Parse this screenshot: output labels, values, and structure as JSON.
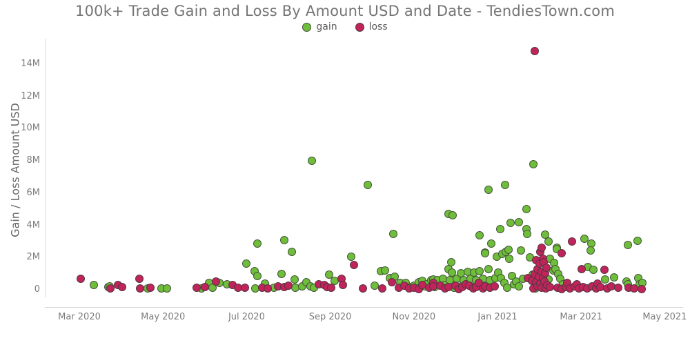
{
  "header": {
    "title": "100k+ Trade Gain and Loss By Amount USD and Date - TendiesTown.com"
  },
  "colors": {
    "gain": "#6fbe3b",
    "loss": "#c0245b",
    "title_text": "#757575",
    "axis_text": "#7c7c7c",
    "axis_line": "#d9d9d9"
  },
  "chart_data": {
    "type": "scatter",
    "title": "100k+ Trade Gain and Loss By Amount USD and Date - TendiesTown.com",
    "xlabel": "",
    "ylabel": "Gain / Loss Amount USD",
    "x_unit": "months_since_2020-01-01",
    "y_unit": "USD_millions",
    "xlim": [
      1.17,
      16.45
    ],
    "ylim": [
      0,
      15.6
    ],
    "grid": false,
    "legend_position": "top-center",
    "x_ticks": [
      {
        "m": 2,
        "label": "Mar 2020"
      },
      {
        "m": 4,
        "label": "May 2020"
      },
      {
        "m": 6,
        "label": "Jul 2020"
      },
      {
        "m": 8,
        "label": "Sep 2020"
      },
      {
        "m": 10,
        "label": "Nov 2020"
      },
      {
        "m": 12,
        "label": "Jan 2021"
      },
      {
        "m": 14,
        "label": "Mar 2021"
      },
      {
        "m": 16,
        "label": "May 2021"
      }
    ],
    "y_ticks": [
      {
        "v": 0,
        "label": "0"
      },
      {
        "v": 2,
        "label": "2M"
      },
      {
        "v": 4,
        "label": "4M"
      },
      {
        "v": 6,
        "label": "6M"
      },
      {
        "v": 8,
        "label": "8M"
      },
      {
        "v": 10,
        "label": "10M"
      },
      {
        "v": 12,
        "label": "12M"
      },
      {
        "v": 14,
        "label": "14M"
      }
    ],
    "series": [
      {
        "name": "gain",
        "color": "#6fbe3b",
        "points": [
          [
            2.35,
            0.3
          ],
          [
            2.69,
            0.17
          ],
          [
            2.72,
            0.21
          ],
          [
            3.63,
            0.09
          ],
          [
            3.96,
            0.09
          ],
          [
            4.1,
            0.09
          ],
          [
            4.92,
            0.09
          ],
          [
            5.1,
            0.43
          ],
          [
            5.19,
            0.13
          ],
          [
            5.35,
            0.43
          ],
          [
            5.53,
            0.34
          ],
          [
            5.99,
            1.63
          ],
          [
            6.19,
            1.16
          ],
          [
            6.21,
            0.09
          ],
          [
            6.26,
            0.86
          ],
          [
            6.26,
            2.87
          ],
          [
            6.44,
            0.39
          ],
          [
            6.65,
            0.13
          ],
          [
            6.83,
            0.99
          ],
          [
            6.9,
            3.08
          ],
          [
            7.08,
            2.36
          ],
          [
            7.15,
            0.64
          ],
          [
            7.17,
            0.13
          ],
          [
            7.33,
            0.21
          ],
          [
            7.43,
            0.47
          ],
          [
            7.53,
            0.21
          ],
          [
            7.61,
            0.13
          ],
          [
            7.56,
            8.0
          ],
          [
            7.97,
            0.94
          ],
          [
            8.11,
            0.56
          ],
          [
            8.5,
            2.06
          ],
          [
            8.9,
            6.5
          ],
          [
            9.06,
            0.26
          ],
          [
            9.21,
            1.16
          ],
          [
            9.31,
            1.2
          ],
          [
            9.43,
            0.73
          ],
          [
            9.51,
            3.47
          ],
          [
            9.54,
            0.81
          ],
          [
            9.67,
            0.43
          ],
          [
            9.8,
            0.43
          ],
          [
            9.92,
            0.17
          ],
          [
            10.0,
            0.26
          ],
          [
            10.12,
            0.47
          ],
          [
            10.13,
            0.13
          ],
          [
            10.2,
            0.56
          ],
          [
            10.26,
            0.21
          ],
          [
            10.3,
            0.34
          ],
          [
            10.42,
            0.6
          ],
          [
            10.5,
            0.17
          ],
          [
            10.46,
            0.64
          ],
          [
            10.56,
            0.6
          ],
          [
            10.69,
            0.69
          ],
          [
            10.74,
            0.3
          ],
          [
            10.83,
            1.28
          ],
          [
            10.83,
            4.71
          ],
          [
            10.86,
            0.6
          ],
          [
            10.93,
            4.63
          ],
          [
            10.9,
            1.71
          ],
          [
            10.91,
            1.07
          ],
          [
            10.96,
            0.13
          ],
          [
            11.03,
            0.69
          ],
          [
            11.13,
            1.03
          ],
          [
            11.16,
            0.26
          ],
          [
            11.19,
            0.6
          ],
          [
            11.29,
            1.11
          ],
          [
            11.36,
            0.69
          ],
          [
            11.39,
            0.17
          ],
          [
            11.44,
            1.07
          ],
          [
            11.49,
            0.6
          ],
          [
            11.57,
            1.16
          ],
          [
            11.57,
            3.38
          ],
          [
            11.59,
            0.3
          ],
          [
            11.65,
            0.69
          ],
          [
            11.7,
            2.31
          ],
          [
            11.7,
            2.27
          ],
          [
            11.79,
            1.28
          ],
          [
            11.79,
            6.2
          ],
          [
            11.82,
            0.6
          ],
          [
            11.85,
            2.87
          ],
          [
            11.95,
            0.73
          ],
          [
            11.98,
            2.06
          ],
          [
            12.02,
            1.07
          ],
          [
            12.07,
            3.77
          ],
          [
            12.08,
            0.73
          ],
          [
            12.12,
            2.23
          ],
          [
            12.17,
            0.43
          ],
          [
            12.18,
            6.5
          ],
          [
            12.2,
            2.36
          ],
          [
            12.23,
            0.13
          ],
          [
            12.26,
            2.48
          ],
          [
            12.28,
            1.93
          ],
          [
            12.31,
            4.15
          ],
          [
            12.35,
            0.86
          ],
          [
            12.4,
            0.34
          ],
          [
            12.45,
            0.51
          ],
          [
            12.51,
            4.2
          ],
          [
            12.51,
            0.21
          ],
          [
            12.56,
            2.44
          ],
          [
            12.61,
            0.69
          ],
          [
            12.69,
            5.0
          ],
          [
            12.69,
            3.77
          ],
          [
            12.71,
            3.47
          ],
          [
            12.78,
            2.01
          ],
          [
            12.84,
            0.94
          ],
          [
            12.86,
            7.8
          ],
          [
            12.9,
            0.09
          ],
          [
            12.97,
            0.51
          ],
          [
            13.1,
            0.21
          ],
          [
            13.14,
            3.43
          ],
          [
            13.22,
            3.0
          ],
          [
            13.22,
            0.64
          ],
          [
            13.25,
            1.93
          ],
          [
            13.34,
            1.2
          ],
          [
            13.42,
            2.61
          ],
          [
            13.42,
            2.53
          ],
          [
            13.35,
            1.67
          ],
          [
            13.39,
            1.28
          ],
          [
            13.45,
            0.99
          ],
          [
            13.5,
            0.69
          ],
          [
            13.57,
            0.34
          ],
          [
            14.08,
            3.17
          ],
          [
            14.16,
            1.41
          ],
          [
            14.25,
            2.87
          ],
          [
            14.23,
            2.44
          ],
          [
            14.3,
            1.24
          ],
          [
            14.58,
            0.64
          ],
          [
            14.79,
            0.77
          ],
          [
            15.09,
            0.51
          ],
          [
            15.12,
            2.78
          ],
          [
            15.12,
            0.34
          ],
          [
            15.35,
            3.04
          ],
          [
            15.37,
            0.73
          ],
          [
            15.4,
            0.34
          ],
          [
            15.47,
            0.43
          ]
        ]
      },
      {
        "name": "loss",
        "color": "#c0245b",
        "points": [
          [
            2.03,
            0.7
          ],
          [
            2.75,
            0.09
          ],
          [
            2.93,
            0.3
          ],
          [
            3.02,
            0.17
          ],
          [
            3.44,
            0.69
          ],
          [
            3.45,
            0.09
          ],
          [
            3.7,
            0.13
          ],
          [
            4.81,
            0.13
          ],
          [
            5.01,
            0.17
          ],
          [
            5.27,
            0.51
          ],
          [
            5.67,
            0.3
          ],
          [
            5.8,
            0.13
          ],
          [
            5.96,
            0.13
          ],
          [
            6.38,
            0.13
          ],
          [
            6.51,
            0.09
          ],
          [
            6.76,
            0.21
          ],
          [
            6.9,
            0.17
          ],
          [
            7.0,
            0.26
          ],
          [
            7.73,
            0.34
          ],
          [
            7.86,
            0.3
          ],
          [
            7.93,
            0.17
          ],
          [
            8.02,
            0.13
          ],
          [
            8.27,
            0.69
          ],
          [
            8.31,
            0.3
          ],
          [
            8.56,
            1.54
          ],
          [
            8.79,
            0.09
          ],
          [
            9.24,
            0.09
          ],
          [
            9.47,
            0.47
          ],
          [
            9.64,
            0.13
          ],
          [
            9.77,
            0.26
          ],
          [
            9.88,
            0.09
          ],
          [
            10.0,
            0.13
          ],
          [
            10.12,
            0.04
          ],
          [
            10.2,
            0.3
          ],
          [
            10.36,
            0.13
          ],
          [
            10.46,
            0.43
          ],
          [
            10.46,
            0.21
          ],
          [
            10.63,
            0.26
          ],
          [
            10.74,
            0.09
          ],
          [
            10.83,
            0.17
          ],
          [
            11.0,
            0.26
          ],
          [
            11.08,
            0.04
          ],
          [
            11.16,
            0.17
          ],
          [
            11.24,
            0.34
          ],
          [
            11.32,
            0.26
          ],
          [
            11.42,
            0.09
          ],
          [
            11.49,
            0.17
          ],
          [
            11.55,
            0.43
          ],
          [
            11.65,
            0.09
          ],
          [
            11.7,
            0.21
          ],
          [
            11.82,
            0.13
          ],
          [
            11.93,
            0.21
          ],
          [
            12.73,
            0.73
          ],
          [
            12.83,
            0.56
          ],
          [
            12.86,
            0.09
          ],
          [
            12.89,
            14.8
          ],
          [
            12.89,
            0.99
          ],
          [
            12.92,
            1.84
          ],
          [
            12.92,
            0.47
          ],
          [
            12.95,
            1.28
          ],
          [
            12.95,
            0.21
          ],
          [
            12.99,
            0.81
          ],
          [
            13.0,
            1.63
          ],
          [
            13.02,
            2.36
          ],
          [
            13.02,
            0.39
          ],
          [
            13.05,
            2.61
          ],
          [
            13.05,
            1.11
          ],
          [
            13.05,
            0.13
          ],
          [
            13.09,
            1.93
          ],
          [
            13.09,
            0.73
          ],
          [
            13.1,
            1.71
          ],
          [
            13.12,
            0.51
          ],
          [
            13.14,
            1.03
          ],
          [
            13.15,
            0.09
          ],
          [
            13.17,
            1.37
          ],
          [
            13.19,
            0.3
          ],
          [
            13.25,
            0.17
          ],
          [
            13.53,
            2.27
          ],
          [
            13.79,
            3.0
          ],
          [
            14.02,
            1.28
          ],
          [
            14.56,
            1.24
          ],
          [
            13.44,
            0.13
          ],
          [
            13.54,
            0.04
          ],
          [
            13.64,
            0.17
          ],
          [
            13.67,
            0.43
          ],
          [
            13.74,
            0.09
          ],
          [
            13.84,
            0.21
          ],
          [
            13.9,
            0.34
          ],
          [
            13.94,
            0.09
          ],
          [
            14.05,
            0.17
          ],
          [
            14.15,
            0.09
          ],
          [
            14.26,
            0.21
          ],
          [
            14.36,
            0.09
          ],
          [
            14.4,
            0.39
          ],
          [
            14.46,
            0.17
          ],
          [
            14.63,
            0.09
          ],
          [
            14.73,
            0.21
          ],
          [
            14.88,
            0.13
          ],
          [
            15.14,
            0.13
          ],
          [
            15.27,
            0.09
          ],
          [
            15.45,
            0.04
          ]
        ]
      }
    ]
  },
  "legend": {
    "items": [
      {
        "label": "gain",
        "color": "#6fbe3b"
      },
      {
        "label": "loss",
        "color": "#c0245b"
      }
    ]
  }
}
